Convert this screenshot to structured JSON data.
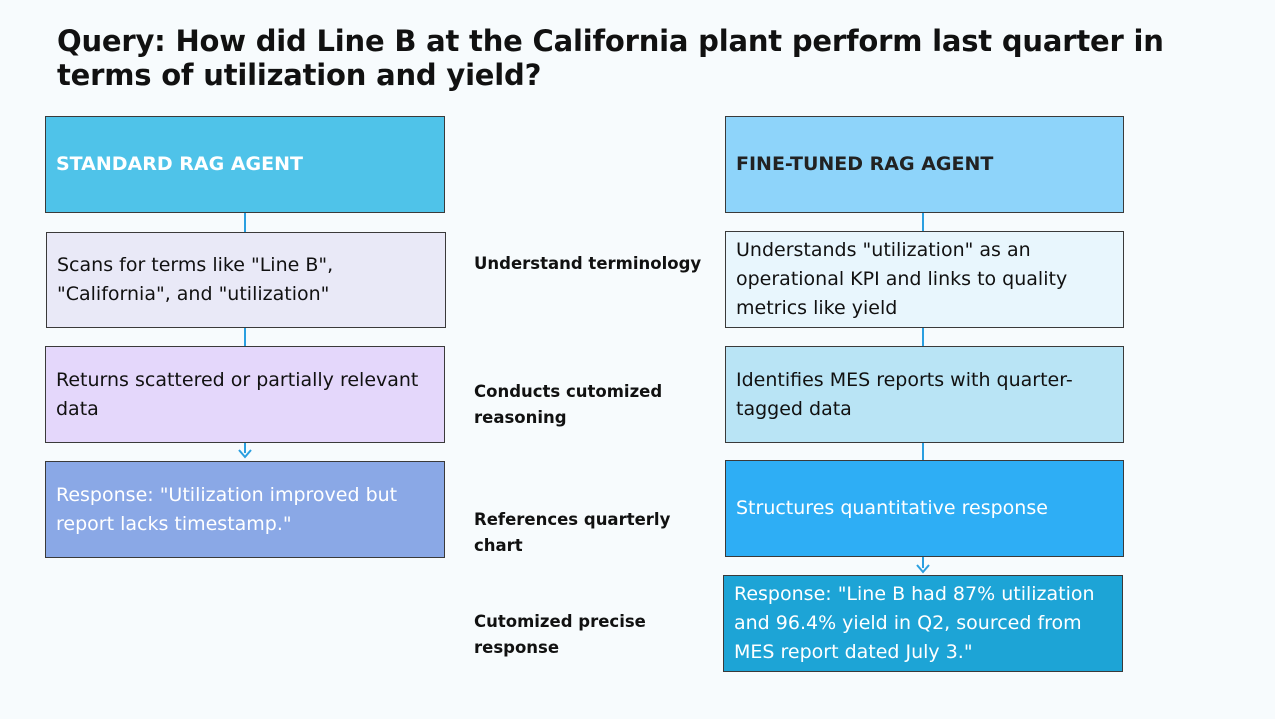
{
  "title": "Query: How did Line B at the California plant perform last quarter in terms of utilization and yield?",
  "colors": {
    "left_header": "#4fc3e9",
    "left_step1": "#e9e9f7",
    "left_step2": "#e4d7fb",
    "left_response": "#8aa8e6",
    "right_header": "#8ed4fa",
    "right_step1": "#e8f6fd",
    "right_step2": "#b9e4f5",
    "right_step3": "#2eaef5",
    "right_response": "#1da4d6",
    "connector": "#2a9fe0"
  },
  "left": {
    "header": "STANDARD RAG AGENT",
    "step1": "Scans for terms like \"Line B\", \"California\", and \"utilization\"",
    "step2": "Returns scattered or partially relevant data",
    "response": "Response: \"Utilization improved but report lacks timestamp.\""
  },
  "middle": {
    "label1": "Understand terminology",
    "label2": "Conducts  cutomized reasoning",
    "label3": "References quarterly chart",
    "label4": "Cutomized precise response"
  },
  "right": {
    "header": "FINE-TUNED RAG AGENT",
    "step1": "Understands \"utilization\" as an operational KPI and links to quality metrics like yield",
    "step2": "Identifies MES reports with quarter-tagged data",
    "step3": "Structures quantitative response",
    "response": "Response: \"Line B had 87% utilization and 96.4% yield in Q2, sourced from MES report dated July 3.\""
  }
}
